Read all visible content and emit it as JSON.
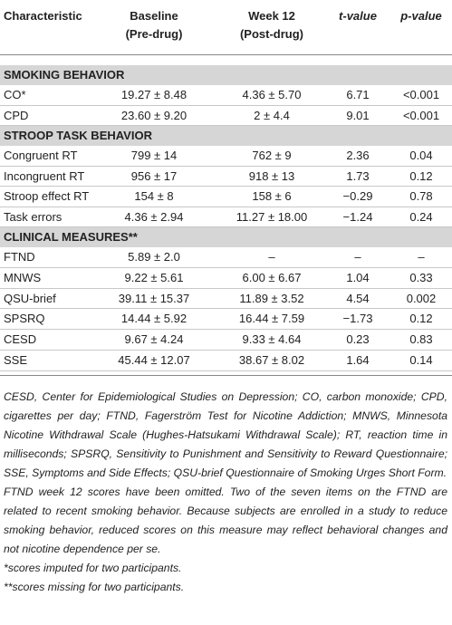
{
  "header": {
    "characteristic": "Characteristic",
    "baseline": [
      "Baseline",
      "(Pre-drug)"
    ],
    "week12": [
      "Week 12",
      "(Post-drug)"
    ],
    "t": "t-value",
    "p": "p-value"
  },
  "sections": [
    {
      "title": "SMOKING BEHAVIOR",
      "rows": [
        [
          "CO*",
          "19.27 ± 8.48",
          "4.36 ± 5.70",
          "6.71",
          "<0.001"
        ],
        [
          "CPD",
          "23.60 ± 9.20",
          "2 ± 4.4",
          "9.01",
          "<0.001"
        ]
      ]
    },
    {
      "title": "STROOP TASK BEHAVIOR",
      "rows": [
        [
          "Congruent RT",
          "799 ± 14",
          "762 ± 9",
          "2.36",
          "0.04"
        ],
        [
          "Incongruent RT",
          "956 ± 17",
          "918 ± 13",
          "1.73",
          "0.12"
        ],
        [
          "Stroop effect RT",
          "154 ± 8",
          "158 ± 6",
          "−0.29",
          "0.78"
        ],
        [
          "Task errors",
          "4.36 ± 2.94",
          "11.27 ± 18.00",
          "−1.24",
          "0.24"
        ]
      ]
    },
    {
      "title": "CLINICAL MEASURES**",
      "rows": [
        [
          "FTND",
          "5.89 ± 2.0",
          "–",
          "–",
          "–"
        ],
        [
          "MNWS",
          "9.22 ± 5.61",
          "6.00 ± 6.67",
          "1.04",
          "0.33"
        ],
        [
          "QSU-brief",
          "39.11 ± 15.37",
          "11.89 ± 3.52",
          "4.54",
          "0.002"
        ],
        [
          "SPSRQ",
          "14.44 ± 5.92",
          "16.44 ± 7.59",
          "−1.73",
          "0.12"
        ],
        [
          "CESD",
          "9.67 ± 4.24",
          "9.33 ± 4.64",
          "0.23",
          "0.83"
        ],
        [
          "SSE",
          "45.44 ± 12.07",
          "38.67 ± 8.02",
          "1.64",
          "0.14"
        ]
      ]
    }
  ],
  "notes": [
    "CESD, Center for Epidemiological Studies on Depression; CO, carbon monoxide; CPD, cigarettes per day; FTND, Fagerström Test for Nicotine Addiction; MNWS, Minnesota Nicotine Withdrawal Scale (Hughes-Hatsukami Withdrawal Scale); RT, reaction time in milliseconds; SPSRQ, Sensitivity to Punishment and Sensitivity to Reward Questionnaire; SSE, Symptoms and Side Effects; QSU-brief Questionnaire of Smoking Urges Short Form.",
    "FTND week 12 scores have been omitted. Two of the seven items on the FTND are related to recent smoking behavior. Because subjects are enrolled in a study to reduce smoking behavior, reduced scores on this measure may reflect behavioral changes and not nicotine dependence per se.",
    "*scores imputed for two participants.",
    "**scores missing for two participants."
  ]
}
